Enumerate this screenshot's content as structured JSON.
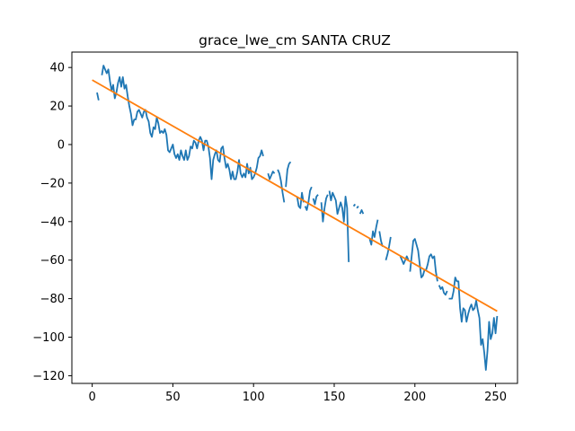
{
  "chart_data": {
    "type": "line",
    "title": "grace_lwe_cm SANTA CRUZ",
    "xlabel": "",
    "ylabel": "",
    "xlim": [
      -12.6,
      263.6
    ],
    "ylim": [
      -124,
      48
    ],
    "xticks": [
      0,
      50,
      100,
      150,
      200,
      250
    ],
    "yticks": [
      -120,
      -100,
      -80,
      -60,
      -40,
      -20,
      0,
      20,
      40
    ],
    "grid": false,
    "legend": "none",
    "series": [
      {
        "role": "observed",
        "color": "#1f77b4",
        "segments": [
          [
            [
              3,
              27
            ],
            [
              4,
              23
            ]
          ],
          [
            [
              6,
              36
            ],
            [
              7,
              41
            ],
            [
              8,
              39
            ],
            [
              9,
              37
            ],
            [
              10,
              39
            ],
            [
              11,
              33
            ],
            [
              12,
              28
            ],
            [
              13,
              31
            ],
            [
              14,
              24
            ],
            [
              15,
              27
            ],
            [
              16,
              32
            ],
            [
              17,
              35
            ],
            [
              18,
              30
            ],
            [
              19,
              35
            ],
            [
              20,
              29
            ],
            [
              21,
              31
            ],
            [
              22,
              25
            ],
            [
              23,
              20
            ],
            [
              24,
              16
            ],
            [
              25,
              10
            ],
            [
              26,
              13
            ],
            [
              27,
              13
            ],
            [
              28,
              17
            ],
            [
              29,
              18
            ],
            [
              30,
              16
            ],
            [
              31,
              14
            ],
            [
              32,
              17
            ],
            [
              33,
              18
            ],
            [
              34,
              14
            ],
            [
              35,
              12
            ],
            [
              36,
              6
            ],
            [
              37,
              4
            ],
            [
              38,
              9
            ],
            [
              39,
              8
            ],
            [
              40,
              14
            ],
            [
              41,
              11
            ],
            [
              42,
              6
            ],
            [
              43,
              7
            ],
            [
              44,
              6
            ],
            [
              45,
              8
            ],
            [
              46,
              5
            ],
            [
              47,
              -3
            ],
            [
              48,
              -4
            ],
            [
              49,
              -2
            ],
            [
              50,
              0
            ],
            [
              51,
              -5
            ],
            [
              52,
              -7
            ],
            [
              53,
              -5
            ],
            [
              54,
              -8
            ],
            [
              55,
              -3
            ],
            [
              56,
              -6
            ],
            [
              57,
              -8
            ],
            [
              58,
              -3
            ],
            [
              59,
              -8
            ],
            [
              60,
              -6
            ],
            [
              61,
              -1
            ],
            [
              62,
              -2
            ],
            [
              63,
              2
            ],
            [
              64,
              1
            ],
            [
              65,
              -2
            ],
            [
              66,
              2
            ],
            [
              67,
              4
            ],
            [
              68,
              2
            ],
            [
              69,
              -3
            ],
            [
              70,
              2
            ],
            [
              71,
              2
            ],
            [
              72,
              -1
            ],
            [
              73,
              -7
            ],
            [
              74,
              -18
            ],
            [
              75,
              -8
            ],
            [
              76,
              -5
            ],
            [
              77,
              -3
            ],
            [
              78,
              -8
            ],
            [
              79,
              -9
            ],
            [
              80,
              -2
            ],
            [
              81,
              -1
            ],
            [
              82,
              -7
            ],
            [
              83,
              -12
            ],
            [
              84,
              -10
            ],
            [
              85,
              -13
            ],
            [
              86,
              -18
            ],
            [
              87,
              -14
            ],
            [
              88,
              -18
            ],
            [
              89,
              -18
            ],
            [
              90,
              -14
            ],
            [
              91,
              -8
            ],
            [
              92,
              -15
            ],
            [
              93,
              -17
            ],
            [
              94,
              -15
            ],
            [
              95,
              -17
            ],
            [
              96,
              -10
            ],
            [
              97,
              -15
            ],
            [
              98,
              -12
            ],
            [
              99,
              -18
            ],
            [
              100,
              -17
            ],
            [
              101,
              -15
            ],
            [
              102,
              -12
            ],
            [
              103,
              -7
            ],
            [
              104,
              -6
            ],
            [
              105,
              -3
            ],
            [
              106,
              -6
            ]
          ],
          [
            [
              109,
              -15
            ],
            [
              110,
              -18
            ],
            [
              111,
              -16
            ],
            [
              112,
              -14
            ],
            [
              113,
              -15
            ]
          ],
          [
            [
              115,
              -13
            ],
            [
              116,
              -15
            ],
            [
              117,
              -19
            ],
            [
              118,
              -25
            ],
            [
              119,
              -30
            ]
          ],
          [
            [
              120,
              -22
            ],
            [
              121,
              -13
            ],
            [
              122,
              -10
            ],
            [
              123,
              -9
            ]
          ],
          [
            [
              127,
              -27
            ],
            [
              128,
              -32
            ],
            [
              129,
              -33
            ],
            [
              130,
              -25
            ],
            [
              131,
              -30
            ]
          ],
          [
            [
              132,
              -32
            ],
            [
              133,
              -34
            ],
            [
              134,
              -30
            ],
            [
              135,
              -24
            ],
            [
              136,
              -22
            ]
          ],
          [
            [
              137,
              -28
            ],
            [
              138,
              -31
            ],
            [
              139,
              -27
            ],
            [
              140,
              -26
            ]
          ],
          [
            [
              142,
              -30
            ],
            [
              143,
              -40
            ],
            [
              144,
              -33
            ],
            [
              145,
              -28
            ],
            [
              146,
              -26
            ]
          ],
          [
            [
              147,
              -24
            ],
            [
              148,
              -29
            ],
            [
              149,
              -25
            ],
            [
              150,
              -27
            ],
            [
              151,
              -29
            ],
            [
              152,
              -36
            ],
            [
              153,
              -33
            ],
            [
              154,
              -30
            ],
            [
              155,
              -33
            ],
            [
              156,
              -40
            ],
            [
              157,
              -27
            ],
            [
              158,
              -33
            ],
            [
              159,
              -61
            ]
          ],
          [
            [
              162,
              -32
            ],
            [
              163,
              -31
            ]
          ],
          [
            [
              164,
              -33
            ],
            [
              165,
              -32
            ]
          ],
          [
            [
              166,
              -36
            ],
            [
              167,
              -34
            ],
            [
              168,
              -36
            ]
          ],
          [
            [
              172,
              -49
            ],
            [
              173,
              -52
            ],
            [
              174,
              -45
            ],
            [
              175,
              -48
            ],
            [
              176,
              -43
            ],
            [
              177,
              -39
            ]
          ],
          [
            [
              178,
              -45
            ],
            [
              179,
              -50
            ],
            [
              180,
              -53
            ]
          ],
          [
            [
              182,
              -60
            ],
            [
              183,
              -57
            ],
            [
              184,
              -53
            ],
            [
              185,
              -48
            ]
          ],
          [
            [
              191,
              -58
            ],
            [
              192,
              -60
            ],
            [
              193,
              -62
            ],
            [
              194,
              -60
            ],
            [
              195,
              -58
            ],
            [
              196,
              -60
            ]
          ],
          [
            [
              197,
              -66
            ],
            [
              198,
              -58
            ],
            [
              199,
              -50
            ],
            [
              200,
              -49
            ],
            [
              201,
              -52
            ],
            [
              202,
              -55
            ],
            [
              203,
              -62
            ],
            [
              204,
              -69
            ],
            [
              205,
              -68
            ],
            [
              206,
              -65
            ],
            [
              207,
              -65
            ],
            [
              208,
              -62
            ],
            [
              209,
              -58
            ],
            [
              210,
              -57
            ],
            [
              211,
              -59
            ],
            [
              212,
              -58
            ],
            [
              213,
              -66
            ],
            [
              214,
              -71
            ]
          ],
          [
            [
              215,
              -73
            ],
            [
              216,
              -75
            ],
            [
              217,
              -74
            ],
            [
              218,
              -77
            ],
            [
              219,
              -78
            ],
            [
              220,
              -76
            ]
          ],
          [
            [
              221,
              -80
            ],
            [
              222,
              -80
            ],
            [
              223,
              -80
            ],
            [
              224,
              -76
            ],
            [
              225,
              -69
            ],
            [
              226,
              -71
            ],
            [
              227,
              -71
            ],
            [
              228,
              -85
            ],
            [
              229,
              -92
            ],
            [
              230,
              -85
            ],
            [
              231,
              -86
            ],
            [
              232,
              -92
            ],
            [
              233,
              -88
            ],
            [
              234,
              -85
            ],
            [
              235,
              -83
            ],
            [
              236,
              -86
            ],
            [
              237,
              -85
            ],
            [
              238,
              -81
            ],
            [
              239,
              -86
            ],
            [
              240,
              -90
            ],
            [
              241,
              -104
            ],
            [
              242,
              -101
            ],
            [
              243,
              -108
            ],
            [
              244,
              -117
            ],
            [
              245,
              -107
            ],
            [
              246,
              -92
            ],
            [
              247,
              -101
            ],
            [
              248,
              -98
            ],
            [
              249,
              -90
            ],
            [
              250,
              -98
            ],
            [
              251,
              -89
            ]
          ]
        ]
      },
      {
        "role": "trend",
        "color": "#ff7f0e",
        "points": [
          [
            0,
            33.5
          ],
          [
            251,
            -86.5
          ]
        ]
      }
    ]
  }
}
